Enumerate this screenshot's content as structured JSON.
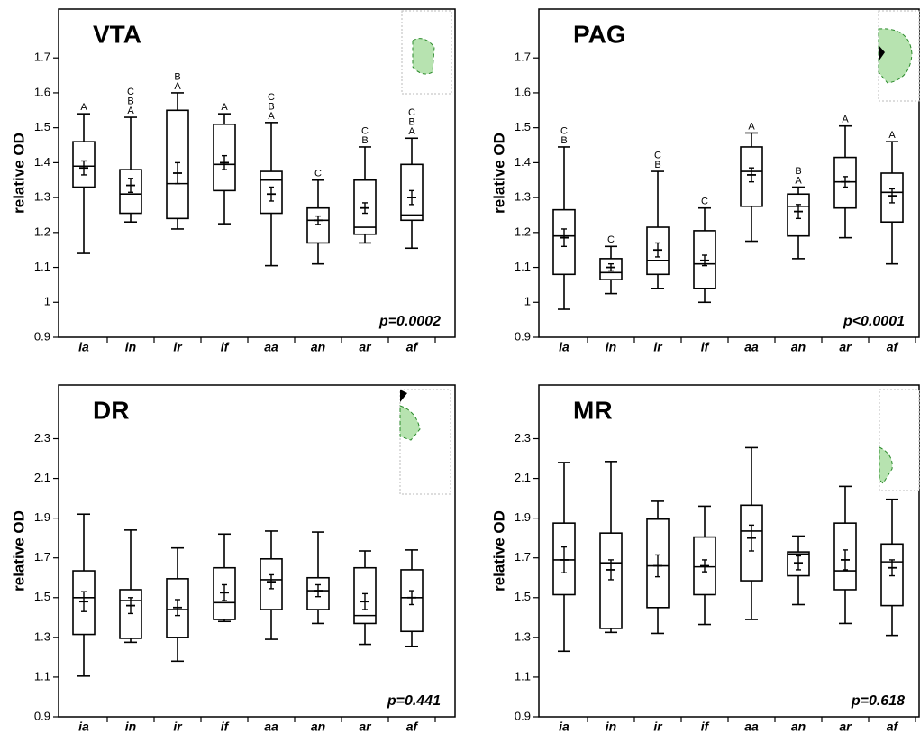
{
  "chart_data": [
    {
      "type": "box",
      "title": "VTA",
      "ylabel": "relative OD",
      "annotation": "p=0.0002",
      "categories": [
        "ia",
        "in",
        "ir",
        "if",
        "aa",
        "an",
        "ar",
        "af"
      ],
      "ylim": [
        0.9,
        1.84
      ],
      "yticks": [
        0.9,
        1,
        1.1,
        1.2,
        1.3,
        1.4,
        1.5,
        1.6,
        1.7
      ],
      "boxes": [
        {
          "low": 1.14,
          "q1": 1.33,
          "median": 1.39,
          "q3": 1.46,
          "high": 1.54,
          "mean": 1.385,
          "sem": 0.02,
          "letters": [
            "A"
          ]
        },
        {
          "low": 1.23,
          "q1": 1.255,
          "median": 1.31,
          "q3": 1.38,
          "high": 1.53,
          "mean": 1.335,
          "sem": 0.02,
          "letters": [
            "C",
            "B",
            "A"
          ]
        },
        {
          "low": 1.21,
          "q1": 1.24,
          "median": 1.34,
          "q3": 1.55,
          "high": 1.6,
          "mean": 1.37,
          "sem": 0.03,
          "letters": [
            "B",
            "A"
          ]
        },
        {
          "low": 1.225,
          "q1": 1.32,
          "median": 1.395,
          "q3": 1.51,
          "high": 1.54,
          "mean": 1.4,
          "sem": 0.02,
          "letters": [
            "A"
          ]
        },
        {
          "low": 1.105,
          "q1": 1.255,
          "median": 1.35,
          "q3": 1.375,
          "high": 1.515,
          "mean": 1.31,
          "sem": 0.02,
          "letters": [
            "C",
            "B",
            "A"
          ]
        },
        {
          "low": 1.11,
          "q1": 1.17,
          "median": 1.235,
          "q3": 1.27,
          "high": 1.35,
          "mean": 1.235,
          "sem": 0.012,
          "letters": [
            "C"
          ]
        },
        {
          "low": 1.17,
          "q1": 1.195,
          "median": 1.215,
          "q3": 1.35,
          "high": 1.445,
          "mean": 1.27,
          "sem": 0.015,
          "letters": [
            "C",
            "B"
          ]
        },
        {
          "low": 1.155,
          "q1": 1.235,
          "median": 1.25,
          "q3": 1.395,
          "high": 1.47,
          "mean": 1.3,
          "sem": 0.02,
          "letters": [
            "C",
            "B",
            "A"
          ]
        }
      ]
    },
    {
      "type": "box",
      "title": "PAG",
      "ylabel": "relative OD",
      "annotation": "p<0.0001",
      "categories": [
        "ia",
        "in",
        "ir",
        "if",
        "aa",
        "an",
        "ar",
        "af"
      ],
      "ylim": [
        0.9,
        1.84
      ],
      "yticks": [
        0.9,
        1,
        1.1,
        1.2,
        1.3,
        1.4,
        1.5,
        1.6,
        1.7
      ],
      "boxes": [
        {
          "low": 0.98,
          "q1": 1.08,
          "median": 1.19,
          "q3": 1.265,
          "high": 1.445,
          "mean": 1.185,
          "sem": 0.025,
          "letters": [
            "C",
            "B"
          ]
        },
        {
          "low": 1.025,
          "q1": 1.065,
          "median": 1.085,
          "q3": 1.125,
          "high": 1.16,
          "mean": 1.1,
          "sem": 0.01,
          "letters": [
            "C"
          ]
        },
        {
          "low": 1.04,
          "q1": 1.08,
          "median": 1.12,
          "q3": 1.215,
          "high": 1.375,
          "mean": 1.15,
          "sem": 0.02,
          "letters": [
            "C",
            "B"
          ]
        },
        {
          "low": 1.0,
          "q1": 1.04,
          "median": 1.11,
          "q3": 1.205,
          "high": 1.27,
          "mean": 1.12,
          "sem": 0.015,
          "letters": [
            "C"
          ]
        },
        {
          "low": 1.175,
          "q1": 1.275,
          "median": 1.375,
          "q3": 1.445,
          "high": 1.485,
          "mean": 1.365,
          "sem": 0.02,
          "letters": [
            "A"
          ]
        },
        {
          "low": 1.125,
          "q1": 1.19,
          "median": 1.275,
          "q3": 1.31,
          "high": 1.33,
          "mean": 1.26,
          "sem": 0.02,
          "letters": [
            "B",
            "A"
          ]
        },
        {
          "low": 1.185,
          "q1": 1.27,
          "median": 1.345,
          "q3": 1.415,
          "high": 1.505,
          "mean": 1.345,
          "sem": 0.015,
          "letters": [
            "A"
          ]
        },
        {
          "low": 1.11,
          "q1": 1.23,
          "median": 1.315,
          "q3": 1.37,
          "high": 1.46,
          "mean": 1.305,
          "sem": 0.02,
          "letters": [
            "A"
          ]
        }
      ]
    },
    {
      "type": "box",
      "title": "DR",
      "ylabel": "relative OD",
      "annotation": "p=0.441",
      "categories": [
        "ia",
        "in",
        "ir",
        "if",
        "aa",
        "an",
        "ar",
        "af"
      ],
      "ylim": [
        0.9,
        2.57
      ],
      "yticks": [
        0.9,
        1.1,
        1.3,
        1.5,
        1.7,
        1.9,
        2.1,
        2.3
      ],
      "boxes": [
        {
          "low": 1.105,
          "q1": 1.315,
          "median": 1.5,
          "q3": 1.635,
          "high": 1.92,
          "mean": 1.48,
          "sem": 0.05,
          "letters": []
        },
        {
          "low": 1.275,
          "q1": 1.295,
          "median": 1.485,
          "q3": 1.54,
          "high": 1.84,
          "mean": 1.46,
          "sem": 0.04,
          "letters": []
        },
        {
          "low": 1.18,
          "q1": 1.3,
          "median": 1.44,
          "q3": 1.595,
          "high": 1.75,
          "mean": 1.45,
          "sem": 0.04,
          "letters": []
        },
        {
          "low": 1.38,
          "q1": 1.39,
          "median": 1.475,
          "q3": 1.65,
          "high": 1.82,
          "mean": 1.525,
          "sem": 0.04,
          "letters": []
        },
        {
          "low": 1.29,
          "q1": 1.44,
          "median": 1.59,
          "q3": 1.695,
          "high": 1.835,
          "mean": 1.58,
          "sem": 0.035,
          "letters": []
        },
        {
          "low": 1.37,
          "q1": 1.44,
          "median": 1.535,
          "q3": 1.6,
          "high": 1.83,
          "mean": 1.535,
          "sem": 0.03,
          "letters": []
        },
        {
          "low": 1.265,
          "q1": 1.37,
          "median": 1.41,
          "q3": 1.65,
          "high": 1.735,
          "mean": 1.48,
          "sem": 0.04,
          "letters": []
        },
        {
          "low": 1.255,
          "q1": 1.33,
          "median": 1.5,
          "q3": 1.64,
          "high": 1.74,
          "mean": 1.5,
          "sem": 0.035,
          "letters": []
        }
      ]
    },
    {
      "type": "box",
      "title": "MR",
      "ylabel": "relative OD",
      "annotation": "p=0.618",
      "categories": [
        "ia",
        "in",
        "ir",
        "if",
        "aa",
        "an",
        "ar",
        "af"
      ],
      "ylim": [
        0.9,
        2.57
      ],
      "yticks": [
        0.9,
        1.1,
        1.3,
        1.5,
        1.7,
        1.9,
        2.1,
        2.3
      ],
      "boxes": [
        {
          "low": 1.23,
          "q1": 1.515,
          "median": 1.69,
          "q3": 1.875,
          "high": 2.18,
          "mean": 1.69,
          "sem": 0.065,
          "letters": []
        },
        {
          "low": 1.325,
          "q1": 1.345,
          "median": 1.675,
          "q3": 1.825,
          "high": 2.185,
          "mean": 1.64,
          "sem": 0.05,
          "letters": []
        },
        {
          "low": 1.32,
          "q1": 1.45,
          "median": 1.66,
          "q3": 1.895,
          "high": 1.985,
          "mean": 1.66,
          "sem": 0.055,
          "letters": []
        },
        {
          "low": 1.365,
          "q1": 1.515,
          "median": 1.655,
          "q3": 1.805,
          "high": 1.96,
          "mean": 1.66,
          "sem": 0.03,
          "letters": []
        },
        {
          "low": 1.39,
          "q1": 1.585,
          "median": 1.835,
          "q3": 1.965,
          "high": 2.255,
          "mean": 1.8,
          "sem": 0.065,
          "letters": []
        },
        {
          "low": 1.465,
          "q1": 1.61,
          "median": 1.72,
          "q3": 1.73,
          "high": 1.81,
          "mean": 1.675,
          "sem": 0.035,
          "letters": []
        },
        {
          "low": 1.37,
          "q1": 1.54,
          "median": 1.635,
          "q3": 1.875,
          "high": 2.06,
          "mean": 1.69,
          "sem": 0.05,
          "letters": []
        },
        {
          "low": 1.31,
          "q1": 1.46,
          "median": 1.68,
          "q3": 1.77,
          "high": 1.995,
          "mean": 1.65,
          "sem": 0.04,
          "letters": []
        }
      ]
    }
  ]
}
